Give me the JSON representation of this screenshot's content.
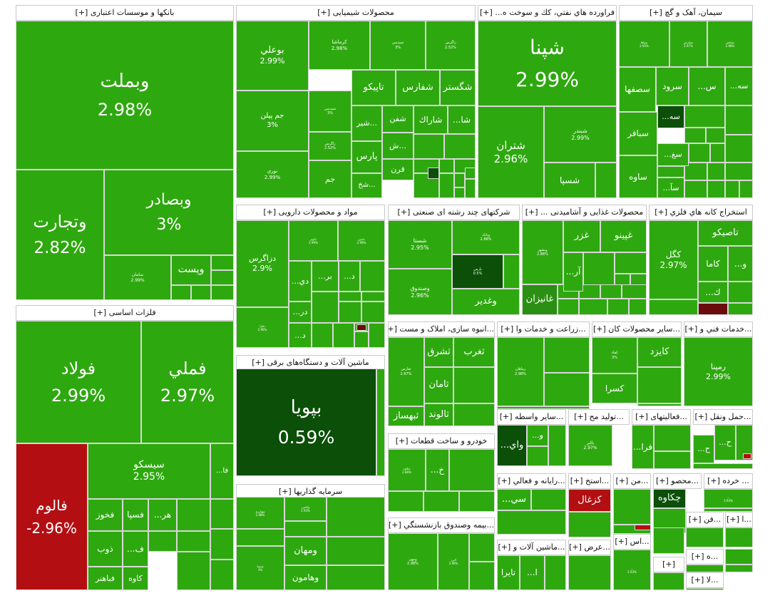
{
  "colors": {
    "up": "#2ea80f",
    "strong": "#0b4f08",
    "mid": "#2a8f12",
    "down": "#b30f12",
    "darkred": "#6a0c0c",
    "border": "#d8d8d8"
  },
  "chart_data": {
    "type": "treemap",
    "metric": "daily change percent",
    "sectors": [
      {
        "name": "بانکها و موسسات اعتباری",
        "expand": "[+]",
        "stocks": [
          {
            "name": "وبملت",
            "change": "2.98%"
          },
          {
            "name": "وتجارت",
            "change": "2.82%"
          },
          {
            "name": "وبصادر",
            "change": "3%"
          },
          {
            "name": "سامان",
            "change": "2.99%"
          },
          {
            "name": "وپست",
            "change": ""
          }
        ]
      },
      {
        "name": "محصولات شیمیایی",
        "expand": "[+]",
        "stocks": [
          {
            "name": "بوعلي",
            "change": "2.99%"
          },
          {
            "name": "جم پیلن",
            "change": "3%"
          },
          {
            "name": "نوري",
            "change": "2.99%"
          },
          {
            "name": "کرماشا",
            "change": "2.98%"
          },
          {
            "name": "شپدیس",
            "change": "3%"
          },
          {
            "name": "زاگرس",
            "change": "2.52%"
          },
          {
            "name": "تاپیکو",
            "change": ""
          },
          {
            "name": "شفارس",
            "change": ""
          },
          {
            "name": "شگستر",
            "change": ""
          },
          {
            "name": "شاراك",
            "change": ""
          },
          {
            "name": "شفن",
            "change": ""
          },
          {
            "name": "پارس",
            "change": ""
          },
          {
            "name": "قرن",
            "change": ""
          },
          {
            "name": "جم",
            "change": ""
          },
          {
            "name": "پارسان",
            "change": "3%"
          },
          {
            "name": "شیراز",
            "change": "2.99%"
          },
          {
            "name": "شير...",
            "change": ""
          },
          {
            "name": "ش...",
            "change": ""
          },
          {
            "name": "شخ...",
            "change": ""
          },
          {
            "name": "...شا",
            "change": ""
          }
        ]
      },
      {
        "name": "فراورده هاي نفتي، كك و سوخت ه...",
        "expand": "[+]",
        "stocks": [
          {
            "name": "شپنا",
            "change": "2.99%"
          },
          {
            "name": "شتران",
            "change": "2.96%"
          },
          {
            "name": "شبندر",
            "change": "2.99%"
          },
          {
            "name": "شسپا",
            "change": ""
          }
        ]
      },
      {
        "name": "سیمان، آهک و گچ",
        "expand": "[+]",
        "stocks": [
          {
            "name": "سپاها",
            "change": "2.95%"
          },
          {
            "name": "سفارس",
            "change": "2.97%"
          },
          {
            "name": "سخاش",
            "change": "2.98%"
          },
          {
            "name": "سصفها",
            "change": ""
          },
          {
            "name": "سرود",
            "change": ""
          },
          {
            "name": "...س",
            "change": ""
          },
          {
            "name": "...سه",
            "change": ""
          },
          {
            "name": "سباقر",
            "change": ""
          },
          {
            "name": "ساوه",
            "change": ""
          },
          {
            "name": "...سه",
            "change": ""
          },
          {
            "name": "...سغ",
            "change": ""
          },
          {
            "name": "...سآ",
            "change": ""
          }
        ]
      },
      {
        "name": "فلزات اساسی",
        "expand": "[+]",
        "stocks": [
          {
            "name": "فولاد",
            "change": "2.99%"
          },
          {
            "name": "فملي",
            "change": "2.97%"
          },
          {
            "name": "فالوم",
            "change": "-2.96%"
          },
          {
            "name": "سیسکو",
            "change": "2.95%"
          },
          {
            "name": "...فا",
            "change": ""
          },
          {
            "name": "فخوز",
            "change": ""
          },
          {
            "name": "فسپا",
            "change": ""
          },
          {
            "name": "...هر",
            "change": ""
          },
          {
            "name": "ذوب",
            "change": ""
          },
          {
            "name": "...ف",
            "change": ""
          },
          {
            "name": "فباهنر",
            "change": ""
          },
          {
            "name": "كاوه",
            "change": ""
          }
        ]
      },
      {
        "name": "مواد و محصولات دارویی",
        "expand": "[+]",
        "stocks": [
          {
            "name": "دزاگرس",
            "change": "2.9%"
          },
          {
            "name": "دفارا",
            "change": "2.96%"
          },
          {
            "name": "دکوثر",
            "change": "2.99%"
          },
          {
            "name": "دامین",
            "change": "2.99%"
          },
          {
            "name": "...دي",
            "change": ""
          },
          {
            "name": "...بر",
            "change": ""
          },
          {
            "name": "...د",
            "change": ""
          },
          {
            "name": "...در",
            "change": ""
          },
          {
            "name": "...د",
            "change": ""
          }
        ]
      },
      {
        "name": "شرکتهای چند رشته ای صنعتی",
        "expand": "[+]",
        "stocks": [
          {
            "name": "شستا",
            "change": "2.95%"
          },
          {
            "name": "وصندوق",
            "change": "2.96%"
          },
          {
            "name": "وبانک",
            "change": "2.88%"
          },
          {
            "name": "پارس",
            "change": "0.5%"
          },
          {
            "name": "وغدير",
            "change": ""
          }
        ]
      },
      {
        "name": "محصولات غذایی و آشامیدنی ...",
        "expand": "[+]",
        "stocks": [
          {
            "name": "وبشهر",
            "change": "2.86%"
          },
          {
            "name": "غزر",
            "change": ""
          },
          {
            "name": "غپینو",
            "change": ""
          },
          {
            "name": "...آر",
            "change": ""
          },
          {
            "name": "غانیزان",
            "change": ""
          }
        ]
      },
      {
        "name": "استخراج کانه هاي فلزي",
        "expand": "[+]",
        "stocks": [
          {
            "name": "كگل",
            "change": "2.97%"
          },
          {
            "name": "تاصیکو",
            "change": ""
          },
          {
            "name": "کاما",
            "change": ""
          },
          {
            "name": "...و",
            "change": ""
          },
          {
            "name": "...ك",
            "change": ""
          }
        ]
      },
      {
        "name": "ماشین آلات و دستگاه‌های برقی",
        "expand": "[+]",
        "stocks": [
          {
            "name": "بپویا",
            "change": "0.59%"
          }
        ]
      },
      {
        "name": "سرمایه گذاریها",
        "expand": "[+]",
        "stocks": [
          {
            "name": "وبهارزم",
            "change": "2.98%"
          },
          {
            "name": "وکاشی",
            "change": "2.93%"
          },
          {
            "name": "وسینا",
            "change": "3%"
          },
          {
            "name": "ومهان",
            "change": ""
          },
          {
            "name": "وهامون",
            "change": ""
          }
        ]
      },
      {
        "name": "...انبوه سازی، املاک و مست",
        "expand": "[+]",
        "stocks": [
          {
            "name": "ثفارس",
            "change": "2.67%"
          },
          {
            "name": "ثشرق",
            "change": ""
          },
          {
            "name": "ثغرب",
            "change": ""
          },
          {
            "name": "ثامان",
            "change": ""
          },
          {
            "name": "ثالوند",
            "change": ""
          },
          {
            "name": "ثبهساز",
            "change": ""
          }
        ]
      },
      {
        "name": "...زراعت و خدمات وا",
        "expand": "[+]",
        "stocks": [
          {
            "name": "زماهان",
            "change": "2.98%"
          }
        ]
      },
      {
        "name": "...سایر محصولات کان",
        "expand": "[+]",
        "stocks": [
          {
            "name": "کایزد",
            "change": ""
          },
          {
            "name": "کسرا",
            "change": ""
          },
          {
            "name": "کچاد",
            "change": "3%"
          }
        ]
      },
      {
        "name": "...خدمات فني و",
        "expand": "[+]",
        "stocks": [
          {
            "name": "رمپنا",
            "change": "2.99%"
          }
        ]
      },
      {
        "name": "خودرو و ساخت قطعات",
        "expand": "[+]",
        "stocks": [
          {
            "name": "خکاوه",
            "change": "2.86%"
          },
          {
            "name": "...خ",
            "change": ""
          }
        ]
      },
      {
        "name": "...بیمه وصندوق بازنشستگي",
        "expand": "[+]",
        "stocks": [
          {
            "name": "ومهن",
            "change": "2.98%"
          },
          {
            "name": "البرز",
            "change": "2.99%"
          }
        ]
      },
      {
        "name": "...سایر واسطه",
        "expand": "[+]",
        "stocks": [
          {
            "name": "...واي",
            "change": ""
          },
          {
            "name": "...و",
            "change": ""
          }
        ]
      },
      {
        "name": "...تولید مح",
        "expand": "[+]",
        "stocks": [
          {
            "name": "بالبر",
            "change": "2.97%"
          }
        ]
      },
      {
        "name": "...فعالیتهای",
        "expand": "[+]",
        "stocks": [
          {
            "name": "...فرا",
            "change": ""
          }
        ]
      },
      {
        "name": "...حمل ونقل",
        "expand": "[+]",
        "stocks": [
          {
            "name": "...ح",
            "change": ""
          },
          {
            "name": "...ح",
            "change": ""
          }
        ]
      },
      {
        "name": "...رایانه و فعالي",
        "expand": "[+]",
        "stocks": [
          {
            "name": "...سي",
            "change": ""
          }
        ]
      },
      {
        "name": "...استخ",
        "expand": "[+]",
        "stocks": [
          {
            "name": "كزغال",
            "change": ""
          }
        ]
      },
      {
        "name": "...من",
        "expand": "[+]",
        "stocks": []
      },
      {
        "name": "...محصو",
        "expand": "[+]",
        "stocks": [
          {
            "name": "چکاوه",
            "change": ""
          }
        ]
      },
      {
        "name": "... خرده",
        "expand": "[+]",
        "stocks": [
          {
            "name": "...",
            "change": "2.93%"
          }
        ]
      },
      {
        "name": "...ماشین آلات و",
        "expand": "[+]",
        "stocks": [
          {
            "name": "تایرا",
            "change": ""
          },
          {
            "name": "...ا",
            "change": ""
          }
        ]
      },
      {
        "name": "...عرض",
        "expand": "[+]",
        "stocks": []
      },
      {
        "name": "...اس",
        "expand": "[+]",
        "stocks": [
          {
            "name": "...",
            "change": "2.93%"
          }
        ]
      },
      {
        "name": "...فن",
        "expand": "[+]",
        "stocks": []
      },
      {
        "name": "...ا",
        "expand": "[+]",
        "stocks": []
      },
      {
        "name": "...ه",
        "expand": "[+]",
        "stocks": []
      },
      {
        "name": "...لا",
        "expand": "[+]",
        "stocks": []
      },
      {
        "name": "",
        "expand": "[+]",
        "stocks": []
      },
      {
        "name": "",
        "expand": "[+]",
        "stocks": []
      }
    ]
  }
}
